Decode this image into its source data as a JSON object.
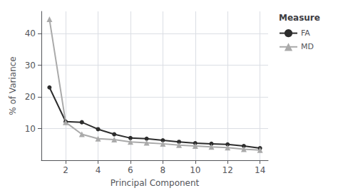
{
  "chart_data": {
    "type": "line",
    "xlabel": "Principal Component",
    "ylabel": "% of Variance",
    "legend_title": "Measure",
    "x": [
      1,
      2,
      3,
      4,
      5,
      6,
      7,
      8,
      9,
      10,
      11,
      12,
      13,
      14
    ],
    "series": [
      {
        "name": "FA",
        "color": "#2d2d2d",
        "marker": "circle",
        "values": [
          23.0,
          12.2,
          12.0,
          9.8,
          8.2,
          7.0,
          6.8,
          6.3,
          5.8,
          5.4,
          5.2,
          5.0,
          4.5,
          3.8
        ]
      },
      {
        "name": "MD",
        "color": "#aaaaaa",
        "marker": "triangle",
        "values": [
          44.5,
          12.0,
          8.2,
          6.8,
          6.5,
          5.8,
          5.5,
          5.2,
          4.8,
          4.5,
          4.2,
          4.0,
          3.5,
          3.2
        ]
      }
    ],
    "xlim": [
      0.5,
      14.5
    ],
    "xticks": [
      2,
      4,
      6,
      8,
      10,
      12,
      14
    ],
    "ylim": [
      0,
      47
    ],
    "yticks": [
      10,
      20,
      30,
      40
    ],
    "grid": true,
    "legend": "right"
  }
}
